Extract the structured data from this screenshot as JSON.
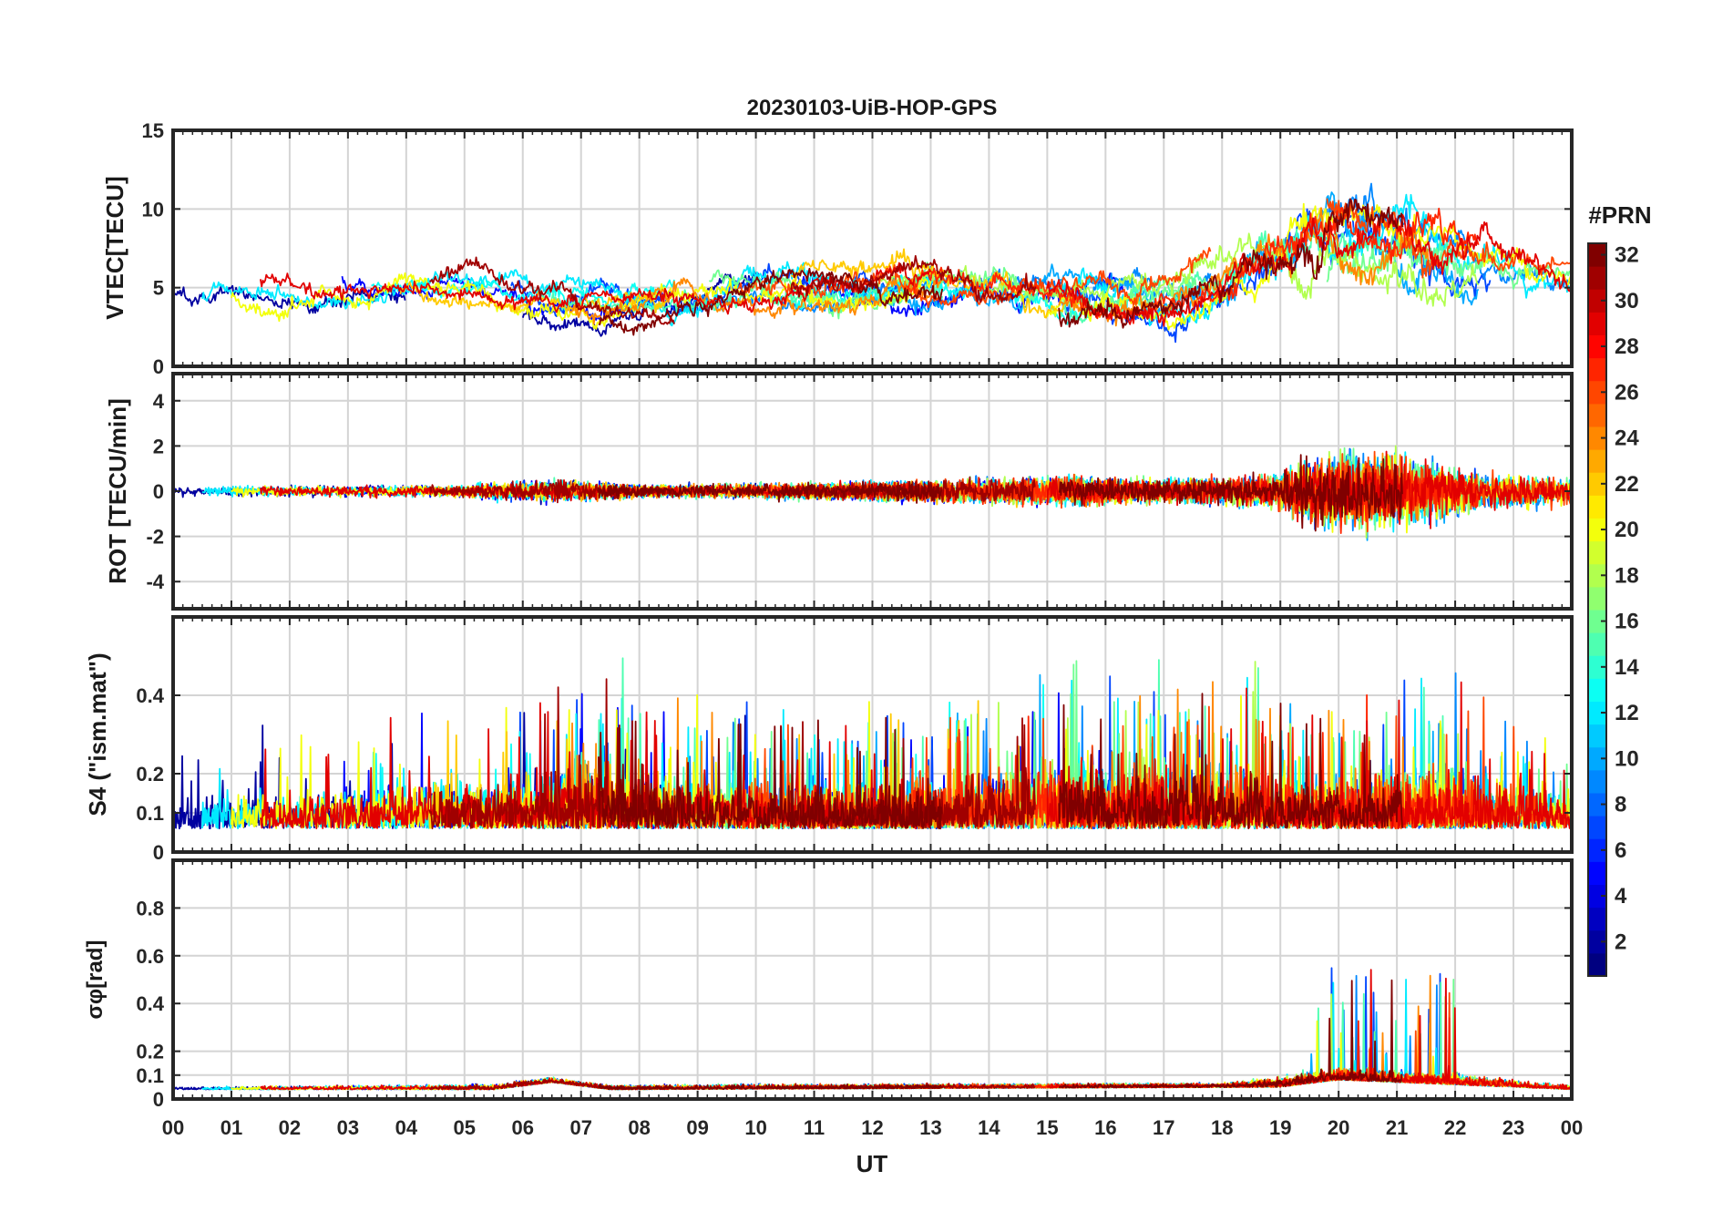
{
  "chart_data": {
    "type": "line",
    "title": "20230103-UiB-HOP-GPS",
    "xlabel": "UT",
    "x_ticks": [
      "00",
      "01",
      "02",
      "03",
      "04",
      "05",
      "06",
      "07",
      "08",
      "09",
      "10",
      "11",
      "12",
      "13",
      "14",
      "15",
      "16",
      "17",
      "18",
      "19",
      "20",
      "21",
      "22",
      "23",
      "00"
    ],
    "xlim": [
      0,
      24
    ],
    "grid": true,
    "colorbar": {
      "title": "#PRN",
      "colormap": "jet",
      "range": [
        1,
        32
      ],
      "ticks": [
        "2",
        "4",
        "6",
        "8",
        "10",
        "12",
        "14",
        "16",
        "18",
        "20",
        "22",
        "24",
        "26",
        "28",
        "30",
        "32"
      ]
    },
    "panels": [
      {
        "id": "vtec",
        "ylabel": "VTEC[TECU]",
        "ylim": [
          0,
          15
        ],
        "yticks": [
          "0",
          "5",
          "10",
          "15"
        ],
        "baseline": [
          [
            0,
            4.8
          ],
          [
            2,
            4.5
          ],
          [
            4,
            5.0
          ],
          [
            5,
            5.0
          ],
          [
            7,
            3.8
          ],
          [
            8,
            4.0
          ],
          [
            10,
            5.0
          ],
          [
            12,
            4.5
          ],
          [
            13,
            5.0
          ],
          [
            15,
            4.6
          ],
          [
            17,
            4.2
          ],
          [
            18,
            5.5
          ],
          [
            19,
            7.0
          ],
          [
            19.8,
            8.5
          ],
          [
            20.5,
            8.0
          ],
          [
            21.5,
            7.0
          ],
          [
            22.5,
            6.5
          ],
          [
            24,
            5.5
          ]
        ],
        "amplitude": [
          [
            0,
            0.8
          ],
          [
            8,
            0.9
          ],
          [
            12,
            1.0
          ],
          [
            18,
            1.3
          ],
          [
            19.5,
            2.2
          ],
          [
            22,
            1.6
          ],
          [
            24,
            0.9
          ]
        ]
      },
      {
        "id": "rot",
        "ylabel": "ROT [TECU/min]",
        "ylim": [
          -5.2,
          5.2
        ],
        "yticks": [
          "-4",
          "-2",
          "0",
          "2",
          "4"
        ],
        "baseline": [
          [
            0,
            0
          ],
          [
            24,
            0
          ]
        ],
        "amplitude": [
          [
            0,
            0.25
          ],
          [
            5,
            0.3
          ],
          [
            6,
            0.55
          ],
          [
            7,
            0.5
          ],
          [
            8,
            0.3
          ],
          [
            13,
            0.5
          ],
          [
            15,
            0.75
          ],
          [
            17,
            0.55
          ],
          [
            19,
            0.9
          ],
          [
            19.5,
            1.9
          ],
          [
            21,
            1.8
          ],
          [
            22.5,
            0.9
          ],
          [
            24,
            0.7
          ]
        ]
      },
      {
        "id": "s4",
        "ylabel": "S4 (\"ism.mat\")",
        "ylim": [
          0,
          0.6
        ],
        "yticks": [
          "0",
          "0.1",
          "0.2",
          "0.4"
        ],
        "baseline": [
          [
            0,
            0.06
          ],
          [
            24,
            0.06
          ]
        ],
        "amplitude": [
          [
            0,
            0.08
          ],
          [
            6,
            0.12
          ],
          [
            7,
            0.15
          ],
          [
            9,
            0.12
          ],
          [
            12,
            0.1
          ],
          [
            15,
            0.15
          ],
          [
            18,
            0.14
          ],
          [
            20,
            0.12
          ],
          [
            22,
            0.14
          ],
          [
            24,
            0.08
          ]
        ]
      },
      {
        "id": "sigma",
        "ylabel": "σφ[rad]",
        "ylim": [
          0,
          1.0
        ],
        "yticks": [
          "0",
          "0.1",
          "0.2",
          "0.4",
          "0.6",
          "0.8"
        ],
        "baseline": [
          [
            0,
            0.04
          ],
          [
            5.5,
            0.04
          ],
          [
            6.5,
            0.07
          ],
          [
            7.5,
            0.04
          ],
          [
            19,
            0.05
          ],
          [
            20,
            0.08
          ],
          [
            22,
            0.06
          ],
          [
            24,
            0.04
          ]
        ],
        "amplitude": [
          [
            0,
            0.012
          ],
          [
            6,
            0.025
          ],
          [
            7,
            0.02
          ],
          [
            18,
            0.02
          ],
          [
            19.5,
            0.06
          ],
          [
            22,
            0.05
          ],
          [
            24,
            0.02
          ]
        ]
      }
    ]
  }
}
